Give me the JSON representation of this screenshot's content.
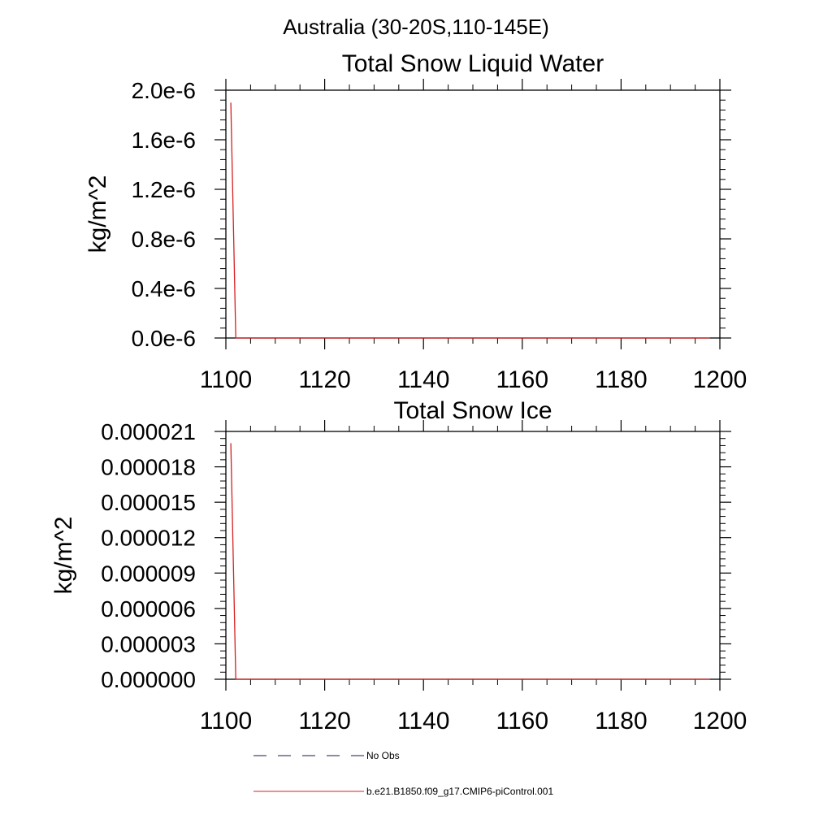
{
  "figure": {
    "title": "Australia (30-20S,110-145E)"
  },
  "legend": {
    "placement": "bottom",
    "entries": [
      {
        "label": "No Obs",
        "color": "#1a1a4d",
        "style": "dashed"
      },
      {
        "label": "b.e21.B1850.f09_g17.CMIP6-piControl.001",
        "color": "#d62020",
        "style": "solid"
      }
    ]
  },
  "chart_data": [
    {
      "type": "line",
      "title": "Total Snow Liquid Water",
      "xlabel": "",
      "ylabel": "kg/m^2",
      "xlim": [
        1100,
        1200
      ],
      "ylim": [
        0,
        2e-06
      ],
      "xticks": [
        1100,
        1120,
        1140,
        1160,
        1180,
        1200
      ],
      "xtick_labels": [
        "1100",
        "1120",
        "1140",
        "1160",
        "1180",
        "1200"
      ],
      "yticks": [
        0,
        4e-07,
        8e-07,
        1.2e-06,
        1.6e-06,
        2e-06
      ],
      "ytick_labels": [
        "0.0e-6",
        "0.4e-6",
        "0.8e-6",
        "1.2e-6",
        "1.6e-6",
        "2.0e-6"
      ],
      "grid": false,
      "series": [
        {
          "name": "b.e21.B1850.f09_g17.CMIP6-piControl.001",
          "color": "#d62020",
          "x": [
            1101,
            1102,
            1198
          ],
          "y": [
            1.9e-06,
            0,
            0
          ]
        }
      ]
    },
    {
      "type": "line",
      "title": "Total Snow Ice",
      "xlabel": "",
      "ylabel": "kg/m^2",
      "xlim": [
        1100,
        1200
      ],
      "ylim": [
        0,
        2.1e-05
      ],
      "xticks": [
        1100,
        1120,
        1140,
        1160,
        1180,
        1200
      ],
      "xtick_labels": [
        "1100",
        "1120",
        "1140",
        "1160",
        "1180",
        "1200"
      ],
      "yticks": [
        0,
        3e-06,
        6e-06,
        9e-06,
        1.2e-05,
        1.5e-05,
        1.8e-05,
        2.1e-05
      ],
      "ytick_labels": [
        "0.000000",
        "0.000003",
        "0.000006",
        "0.000009",
        "0.000012",
        "0.000015",
        "0.000018",
        "0.000021"
      ],
      "grid": false,
      "series": [
        {
          "name": "b.e21.B1850.f09_g17.CMIP6-piControl.001",
          "color": "#d62020",
          "x": [
            1101,
            1102,
            1198
          ],
          "y": [
            2e-05,
            0,
            0
          ]
        }
      ]
    }
  ]
}
